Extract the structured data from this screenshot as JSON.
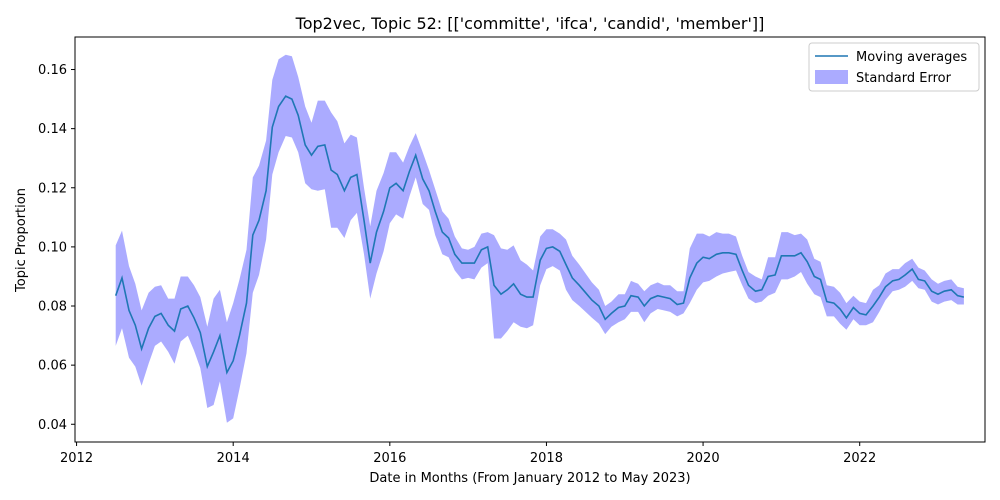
{
  "chart_data": {
    "type": "line",
    "title": "Top2vec, Topic 52: [['committe', 'ifca', 'candid', 'member']]",
    "xlabel": "Date in Months (From January 2012 to May 2023)",
    "ylabel": "Topic Proportion",
    "xlim": [
      2011.98,
      2023.6
    ],
    "ylim": [
      0.034,
      0.171
    ],
    "xticks": [
      2012,
      2014,
      2016,
      2018,
      2020,
      2022
    ],
    "yticks": [
      0.04,
      0.06,
      0.08,
      0.1,
      0.12,
      0.14,
      0.16
    ],
    "ytick_labels": [
      "0.04",
      "0.06",
      "0.08",
      "0.10",
      "0.12",
      "0.14",
      "0.16"
    ],
    "legend": {
      "position": "top-right",
      "entries": [
        "Moving averages",
        "Standard Error"
      ]
    },
    "colors": {
      "line": "#1f77b4",
      "band": "#0000ff",
      "band_opacity": 0.33
    },
    "series": [
      {
        "name": "Moving averages",
        "x": [
          2012.5,
          2012.58,
          2012.67,
          2012.75,
          2012.83,
          2012.92,
          2013.0,
          2013.08,
          2013.17,
          2013.25,
          2013.33,
          2013.42,
          2013.5,
          2013.58,
          2013.67,
          2013.75,
          2013.83,
          2013.92,
          2014.0,
          2014.08,
          2014.17,
          2014.25,
          2014.33,
          2014.42,
          2014.5,
          2014.58,
          2014.67,
          2014.75,
          2014.83,
          2014.92,
          2015.0,
          2015.08,
          2015.17,
          2015.25,
          2015.33,
          2015.42,
          2015.5,
          2015.58,
          2015.67,
          2015.75,
          2015.83,
          2015.92,
          2016.0,
          2016.08,
          2016.17,
          2016.25,
          2016.33,
          2016.42,
          2016.5,
          2016.58,
          2016.67,
          2016.75,
          2016.83,
          2016.92,
          2017.0,
          2017.08,
          2017.17,
          2017.25,
          2017.33,
          2017.42,
          2017.5,
          2017.58,
          2017.67,
          2017.75,
          2017.83,
          2017.92,
          2018.0,
          2018.08,
          2018.17,
          2018.25,
          2018.33,
          2018.42,
          2018.5,
          2018.58,
          2018.67,
          2018.75,
          2018.83,
          2018.92,
          2019.0,
          2019.08,
          2019.17,
          2019.25,
          2019.33,
          2019.42,
          2019.5,
          2019.58,
          2019.67,
          2019.75,
          2019.83,
          2019.92,
          2020.0,
          2020.08,
          2020.17,
          2020.25,
          2020.33,
          2020.42,
          2020.5,
          2020.58,
          2020.67,
          2020.75,
          2020.83,
          2020.92,
          2021.0,
          2021.08,
          2021.17,
          2021.25,
          2021.33,
          2021.42,
          2021.5,
          2021.58,
          2021.67,
          2021.75,
          2021.83,
          2021.92,
          2022.0,
          2022.08,
          2022.17,
          2022.25,
          2022.33,
          2022.42,
          2022.5,
          2022.58,
          2022.67,
          2022.75,
          2022.83,
          2022.92,
          2023.0,
          2023.08,
          2023.17,
          2023.25,
          2023.33
        ],
        "y": [
          0.0835,
          0.0895,
          0.0785,
          0.0735,
          0.0655,
          0.0725,
          0.0765,
          0.0775,
          0.0735,
          0.0715,
          0.079,
          0.08,
          0.076,
          0.071,
          0.0595,
          0.0645,
          0.07,
          0.0575,
          0.0615,
          0.07,
          0.081,
          0.104,
          0.109,
          0.119,
          0.1405,
          0.1475,
          0.151,
          0.15,
          0.1445,
          0.1345,
          0.131,
          0.134,
          0.1345,
          0.126,
          0.1245,
          0.119,
          0.1235,
          0.1245,
          0.109,
          0.0945,
          0.105,
          0.112,
          0.12,
          0.1215,
          0.119,
          0.1255,
          0.131,
          0.123,
          0.119,
          0.112,
          0.105,
          0.103,
          0.0975,
          0.0945,
          0.0945,
          0.0945,
          0.099,
          0.1,
          0.087,
          0.084,
          0.0855,
          0.0875,
          0.084,
          0.083,
          0.083,
          0.0955,
          0.0995,
          0.1,
          0.0985,
          0.094,
          0.0895,
          0.087,
          0.0845,
          0.082,
          0.08,
          0.0755,
          0.0775,
          0.0795,
          0.08,
          0.0835,
          0.083,
          0.08,
          0.0825,
          0.0835,
          0.083,
          0.0825,
          0.0805,
          0.081,
          0.0895,
          0.0945,
          0.0965,
          0.096,
          0.0975,
          0.098,
          0.098,
          0.0975,
          0.092,
          0.087,
          0.085,
          0.0855,
          0.09,
          0.0905,
          0.097,
          0.097,
          0.097,
          0.098,
          0.095,
          0.09,
          0.089,
          0.0815,
          0.081,
          0.079,
          0.076,
          0.0795,
          0.0775,
          0.077,
          0.08,
          0.083,
          0.0865,
          0.0885,
          0.089,
          0.0905,
          0.0925,
          0.089,
          0.0885,
          0.085,
          0.084,
          0.085,
          0.0855,
          0.0835,
          0.083
        ]
      },
      {
        "name": "Standard Error",
        "x": [
          2012.5,
          2012.58,
          2012.67,
          2012.75,
          2012.83,
          2012.92,
          2013.0,
          2013.08,
          2013.17,
          2013.25,
          2013.33,
          2013.42,
          2013.5,
          2013.58,
          2013.67,
          2013.75,
          2013.83,
          2013.92,
          2014.0,
          2014.08,
          2014.17,
          2014.25,
          2014.33,
          2014.42,
          2014.5,
          2014.58,
          2014.67,
          2014.75,
          2014.83,
          2014.92,
          2015.0,
          2015.08,
          2015.17,
          2015.25,
          2015.33,
          2015.42,
          2015.5,
          2015.58,
          2015.67,
          2015.75,
          2015.83,
          2015.92,
          2016.0,
          2016.08,
          2016.17,
          2016.25,
          2016.33,
          2016.42,
          2016.5,
          2016.58,
          2016.67,
          2016.75,
          2016.83,
          2016.92,
          2017.0,
          2017.08,
          2017.17,
          2017.25,
          2017.33,
          2017.42,
          2017.5,
          2017.58,
          2017.67,
          2017.75,
          2017.83,
          2017.92,
          2018.0,
          2018.08,
          2018.17,
          2018.25,
          2018.33,
          2018.42,
          2018.5,
          2018.58,
          2018.67,
          2018.75,
          2018.83,
          2018.92,
          2019.0,
          2019.08,
          2019.17,
          2019.25,
          2019.33,
          2019.42,
          2019.5,
          2019.58,
          2019.67,
          2019.75,
          2019.83,
          2019.92,
          2020.0,
          2020.08,
          2020.17,
          2020.25,
          2020.33,
          2020.42,
          2020.5,
          2020.58,
          2020.67,
          2020.75,
          2020.83,
          2020.92,
          2021.0,
          2021.08,
          2021.17,
          2021.25,
          2021.33,
          2021.42,
          2021.5,
          2021.58,
          2021.67,
          2021.75,
          2021.83,
          2021.92,
          2022.0,
          2022.08,
          2022.17,
          2022.25,
          2022.33,
          2022.42,
          2022.5,
          2022.58,
          2022.67,
          2022.75,
          2022.83,
          2022.92,
          2023.0,
          2023.08,
          2023.17,
          2023.25,
          2023.33
        ],
        "upper": [
          0.1005,
          0.1055,
          0.0935,
          0.0875,
          0.0785,
          0.0845,
          0.0865,
          0.087,
          0.0825,
          0.0825,
          0.09,
          0.09,
          0.087,
          0.083,
          0.073,
          0.0825,
          0.0855,
          0.0745,
          0.081,
          0.089,
          0.099,
          0.1235,
          0.1275,
          0.136,
          0.1565,
          0.1635,
          0.165,
          0.1645,
          0.1575,
          0.1475,
          0.142,
          0.1495,
          0.1495,
          0.1455,
          0.1425,
          0.135,
          0.138,
          0.137,
          0.12,
          0.107,
          0.119,
          0.125,
          0.132,
          0.132,
          0.1285,
          0.134,
          0.1385,
          0.132,
          0.126,
          0.1195,
          0.112,
          0.1095,
          0.1035,
          0.0995,
          0.099,
          0.1,
          0.1045,
          0.105,
          0.104,
          0.0995,
          0.099,
          0.1005,
          0.0955,
          0.094,
          0.092,
          0.1035,
          0.106,
          0.106,
          0.1045,
          0.1025,
          0.097,
          0.094,
          0.091,
          0.088,
          0.0855,
          0.08,
          0.0815,
          0.084,
          0.084,
          0.0885,
          0.0875,
          0.085,
          0.087,
          0.088,
          0.087,
          0.087,
          0.085,
          0.085,
          0.0995,
          0.1045,
          0.1045,
          0.1035,
          0.105,
          0.1045,
          0.1045,
          0.1035,
          0.097,
          0.0915,
          0.09,
          0.089,
          0.0965,
          0.0965,
          0.105,
          0.105,
          0.104,
          0.1045,
          0.1025,
          0.096,
          0.095,
          0.087,
          0.0865,
          0.0845,
          0.081,
          0.0835,
          0.0815,
          0.081,
          0.0855,
          0.087,
          0.091,
          0.0925,
          0.0925,
          0.0945,
          0.096,
          0.093,
          0.092,
          0.089,
          0.0875,
          0.0885,
          0.089,
          0.0865,
          0.086
        ],
        "lower": [
          0.0665,
          0.0725,
          0.0625,
          0.0595,
          0.053,
          0.0605,
          0.0665,
          0.068,
          0.0645,
          0.0605,
          0.068,
          0.07,
          0.065,
          0.059,
          0.0455,
          0.0465,
          0.0545,
          0.0405,
          0.042,
          0.052,
          0.064,
          0.0845,
          0.0905,
          0.1025,
          0.1245,
          0.132,
          0.1375,
          0.137,
          0.132,
          0.1215,
          0.1195,
          0.119,
          0.1195,
          0.1065,
          0.1065,
          0.103,
          0.109,
          0.1115,
          0.0975,
          0.0825,
          0.091,
          0.0985,
          0.108,
          0.111,
          0.1095,
          0.117,
          0.1235,
          0.1145,
          0.1125,
          0.104,
          0.0975,
          0.0965,
          0.092,
          0.089,
          0.0895,
          0.089,
          0.093,
          0.0945,
          0.069,
          0.069,
          0.0715,
          0.0745,
          0.073,
          0.0725,
          0.0735,
          0.087,
          0.0925,
          0.0935,
          0.092,
          0.0855,
          0.082,
          0.08,
          0.078,
          0.076,
          0.074,
          0.0705,
          0.073,
          0.0745,
          0.0755,
          0.078,
          0.078,
          0.0745,
          0.0775,
          0.079,
          0.0785,
          0.078,
          0.0765,
          0.0775,
          0.081,
          0.0855,
          0.088,
          0.0885,
          0.09,
          0.091,
          0.0915,
          0.092,
          0.087,
          0.0825,
          0.081,
          0.0815,
          0.0835,
          0.0845,
          0.089,
          0.089,
          0.09,
          0.0915,
          0.0875,
          0.084,
          0.083,
          0.0765,
          0.0765,
          0.074,
          0.072,
          0.0755,
          0.0735,
          0.0735,
          0.0745,
          0.078,
          0.082,
          0.085,
          0.0855,
          0.0865,
          0.0885,
          0.086,
          0.0855,
          0.0815,
          0.0805,
          0.0815,
          0.082,
          0.0805,
          0.0805
        ]
      }
    ]
  }
}
